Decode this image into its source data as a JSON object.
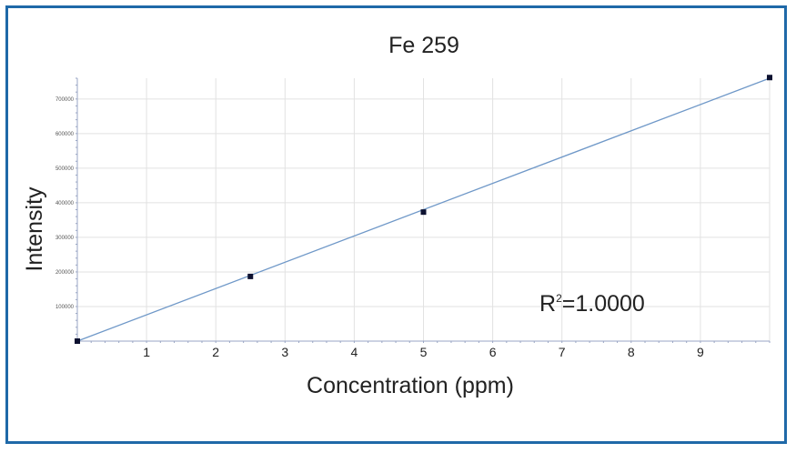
{
  "chart_data": {
    "type": "scatter",
    "title": "Fe 259",
    "xlabel": "Concentration (ppm)",
    "ylabel": "Intensity",
    "xlim": [
      0,
      10
    ],
    "ylim": [
      0,
      760000
    ],
    "x_ticks": [
      1,
      2,
      3,
      4,
      5,
      6,
      7,
      8,
      9
    ],
    "y_ticks": [
      100000,
      200000,
      300000,
      400000,
      500000,
      600000,
      700000
    ],
    "grid": true,
    "series": [
      {
        "points": [
          {
            "x": 0,
            "y": 0
          },
          {
            "x": 2.5,
            "y": 187000
          },
          {
            "x": 5,
            "y": 373000
          },
          {
            "x": 10,
            "y": 762000
          }
        ]
      }
    ],
    "fit_line": {
      "x": [
        0,
        10
      ],
      "y": [
        0,
        760000
      ]
    },
    "annotation": {
      "base": "R",
      "sup": "2",
      "rest": "=1.0000"
    },
    "colors": {
      "frame": "#1f69a8",
      "line": "#6f98c8",
      "marker": "#0d1130",
      "grid": "#e2e2e2",
      "axis": "#9aa6c4"
    }
  }
}
